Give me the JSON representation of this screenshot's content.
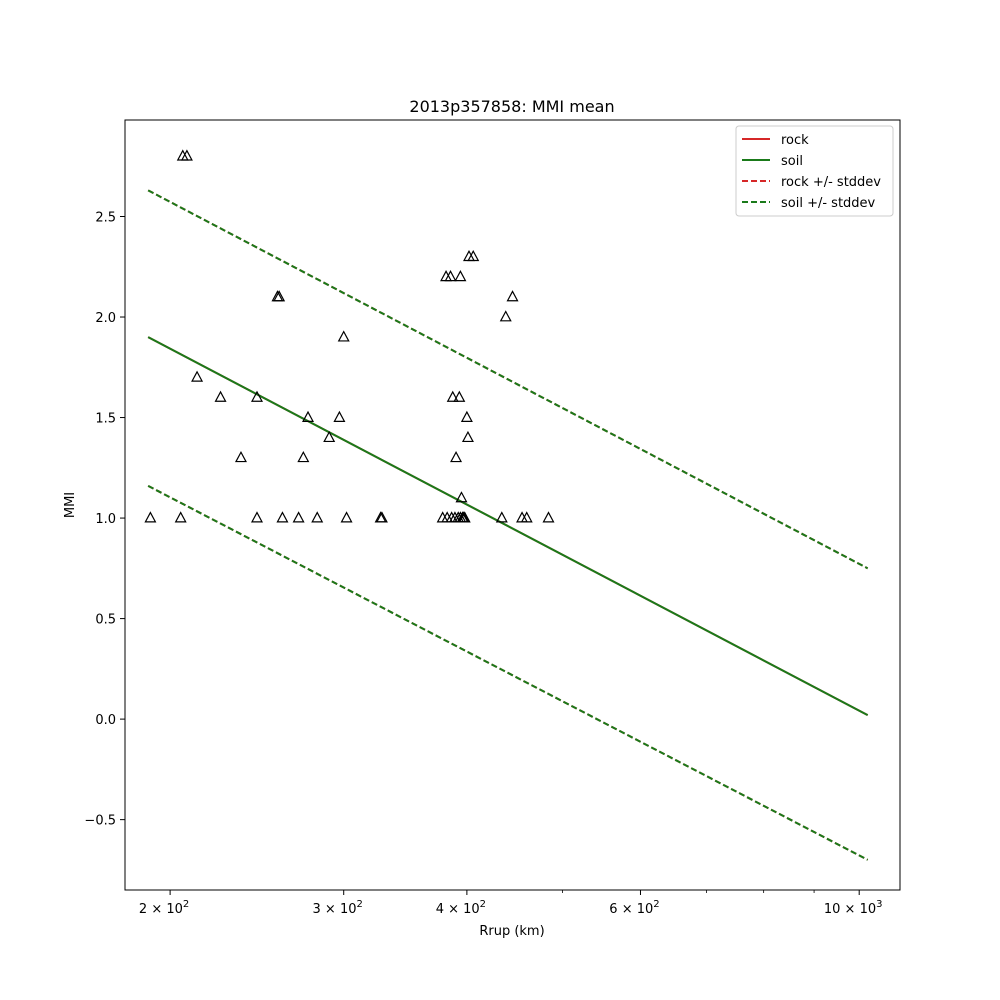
{
  "chart_data": {
    "type": "scatter",
    "title": "2013p357858: MMI mean",
    "xlabel": "Rrup (km)",
    "ylabel": "MMI",
    "xscale": "log",
    "xlim": [
      180,
      1100
    ],
    "ylim": [
      -0.85,
      2.98
    ],
    "x_ticks": [
      {
        "value": 200,
        "base": "2",
        "exp": "2"
      },
      {
        "value": 300,
        "base": "3",
        "exp": "2"
      },
      {
        "value": 400,
        "base": "4",
        "exp": "2"
      },
      {
        "value": 600,
        "base": "6",
        "exp": "2"
      },
      {
        "value": 1000,
        "base": "10",
        "exp": "3"
      }
    ],
    "x_minor_ticks": [
      500,
      700,
      800,
      900
    ],
    "y_ticks": [
      {
        "value": -0.5,
        "label": "−0.5"
      },
      {
        "value": 0.0,
        "label": "0.0"
      },
      {
        "value": 0.5,
        "label": "0.5"
      },
      {
        "value": 1.0,
        "label": "1.0"
      },
      {
        "value": 1.5,
        "label": "1.5"
      },
      {
        "value": 2.0,
        "label": "2.0"
      },
      {
        "value": 2.5,
        "label": "2.5"
      }
    ],
    "grid": false,
    "legend_position": "top-right",
    "lines": [
      {
        "name": "rock",
        "style": "solid",
        "color": "#d62728",
        "x": [
          190,
          1020
        ],
        "y": [
          1.9,
          0.02
        ]
      },
      {
        "name": "soil",
        "style": "solid",
        "color": "#1a7a1a",
        "x": [
          190,
          1020
        ],
        "y": [
          1.9,
          0.02
        ]
      },
      {
        "name": "rock +/- stddev",
        "style": "dashed",
        "color": "#d62728",
        "x": [
          190,
          1020
        ],
        "y": [
          2.63,
          0.75
        ],
        "y_lower": [
          1.16,
          -0.7
        ]
      },
      {
        "name": "soil +/- stddev",
        "style": "dashed",
        "color": "#1a7a1a",
        "x": [
          190,
          1020
        ],
        "y": [
          2.63,
          0.75
        ],
        "y_lower": [
          1.16,
          -0.7
        ]
      }
    ],
    "points": {
      "marker": "triangle-open",
      "color": "#000000",
      "x": [
        191,
        205,
        206,
        208,
        213,
        225,
        236,
        245,
        245,
        257,
        258,
        260,
        270,
        273,
        276,
        282,
        290,
        297,
        300,
        302,
        327,
        328,
        378,
        381,
        382,
        385,
        386,
        387,
        389,
        390,
        392,
        393,
        394,
        394,
        395,
        396,
        397,
        398,
        400,
        401,
        402,
        406,
        434,
        438,
        445,
        455,
        460,
        484
      ],
      "y": [
        1.0,
        1.0,
        2.8,
        2.8,
        1.7,
        1.6,
        1.3,
        1.6,
        1.0,
        2.1,
        2.1,
        1.0,
        1.0,
        1.3,
        1.5,
        1.0,
        1.4,
        1.5,
        1.9,
        1.0,
        1.0,
        1.0,
        1.0,
        2.2,
        1.0,
        2.2,
        1.0,
        1.6,
        1.0,
        1.3,
        1.0,
        1.6,
        1.0,
        2.2,
        1.1,
        1.0,
        1.0,
        1.0,
        1.5,
        1.4,
        2.3,
        2.3,
        1.0,
        2.0,
        2.1,
        1.0,
        1.0,
        1.0
      ]
    },
    "legend": [
      {
        "label": "rock",
        "style": "solid",
        "color": "#d62728"
      },
      {
        "label": "soil",
        "style": "solid",
        "color": "#1a7a1a"
      },
      {
        "label": "rock +/- stddev",
        "style": "dashed",
        "color": "#d62728"
      },
      {
        "label": "soil +/- stddev",
        "style": "dashed",
        "color": "#1a7a1a"
      }
    ]
  }
}
